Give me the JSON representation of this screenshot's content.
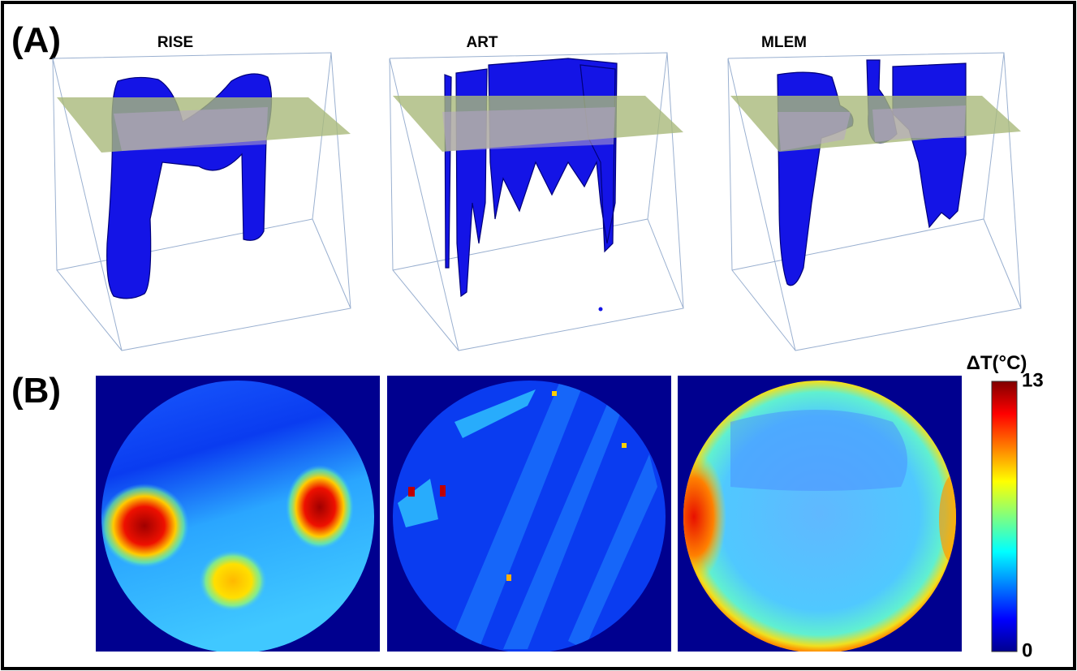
{
  "panel_a": {
    "label": "(A)",
    "titles": [
      "RISE",
      "ART",
      "MLEM"
    ]
  },
  "panel_b": {
    "label": "(B)",
    "colorbar": {
      "label": "ΔT(°C)",
      "lim": [
        0,
        13
      ],
      "ticks": [
        0,
        13
      ]
    }
  }
}
